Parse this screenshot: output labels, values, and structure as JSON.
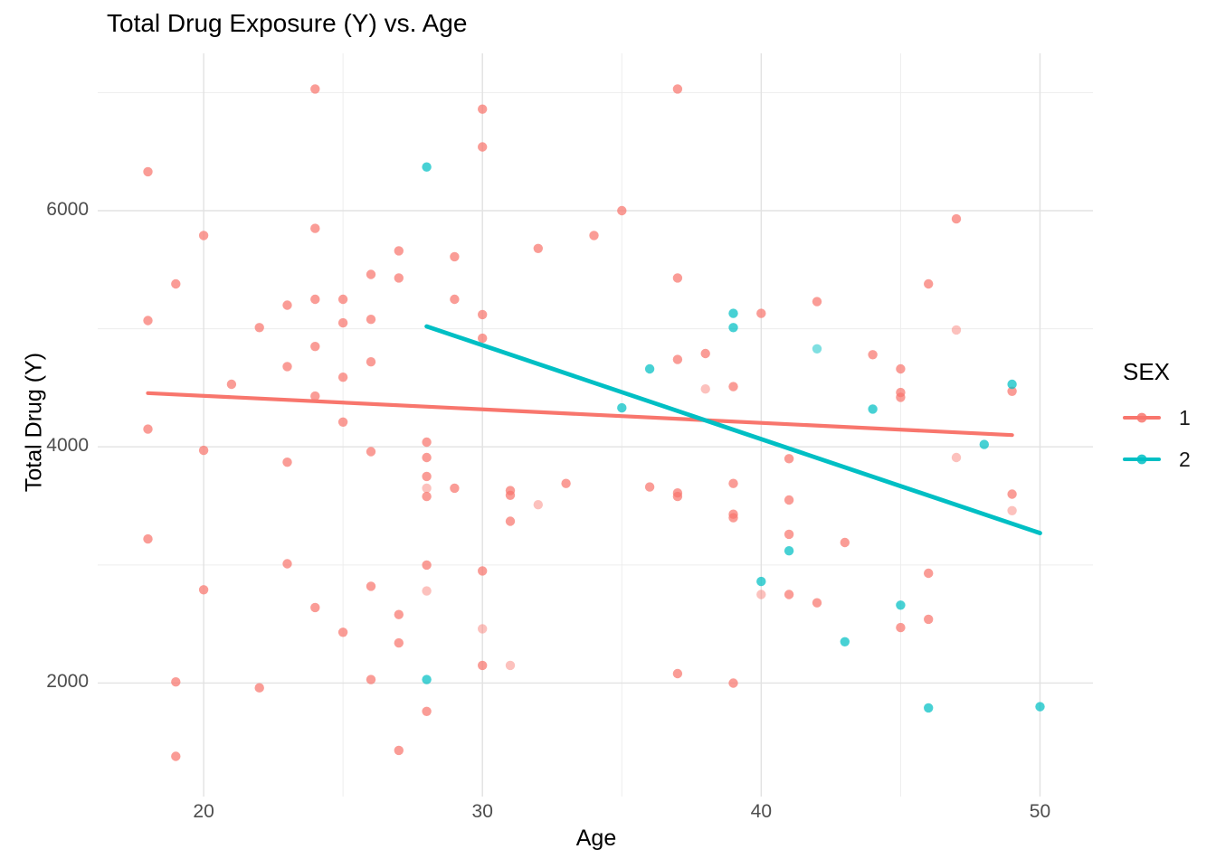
{
  "chart_data": {
    "type": "scatter",
    "title": "Total Drug Exposure (Y) vs. Age",
    "xlabel": "Age",
    "ylabel": "Total Drug (Y)",
    "xlim": [
      16.2,
      51.9
    ],
    "ylim": [
      1039,
      7332
    ],
    "grid": true,
    "x_major_ticks": [
      20,
      30,
      40,
      50
    ],
    "x_minor_ticks": [
      25,
      35,
      45
    ],
    "y_major_ticks": [
      2000,
      4000,
      6000
    ],
    "y_minor_ticks": [
      3000,
      5000,
      7000
    ],
    "legend": {
      "title": "SEX",
      "position": "right",
      "entries": [
        {
          "label": "1",
          "color": "#F8766D"
        },
        {
          "label": "2",
          "color": "#00BFC4"
        }
      ]
    },
    "series": [
      {
        "name": "1",
        "color": "#F8766D",
        "points": [
          [
            24,
            7030
          ],
          [
            37,
            7030
          ],
          [
            30,
            6860
          ],
          [
            30,
            6540
          ],
          [
            18,
            6330
          ],
          [
            35,
            6000
          ],
          [
            47,
            5930
          ],
          [
            24,
            5850
          ],
          [
            34,
            5790
          ],
          [
            20,
            5790
          ],
          [
            32,
            5680
          ],
          [
            27,
            5660
          ],
          [
            29,
            5610
          ],
          [
            26,
            5460
          ],
          [
            27,
            5430
          ],
          [
            37,
            5430
          ],
          [
            19,
            5380
          ],
          [
            46,
            5380
          ],
          [
            24,
            5250
          ],
          [
            25,
            5250
          ],
          [
            29,
            5250
          ],
          [
            42,
            5230
          ],
          [
            23,
            5200
          ],
          [
            40,
            5130
          ],
          [
            30,
            5120
          ],
          [
            26,
            5080
          ],
          [
            18,
            5070
          ],
          [
            25,
            5050
          ],
          [
            22,
            5010
          ],
          [
            47,
            4990,
            0.45
          ],
          [
            30,
            4920
          ],
          [
            24,
            4850
          ],
          [
            38,
            4790
          ],
          [
            44,
            4780
          ],
          [
            37,
            4740
          ],
          [
            26,
            4720
          ],
          [
            23,
            4680
          ],
          [
            45,
            4660
          ],
          [
            25,
            4590
          ],
          [
            21,
            4530
          ],
          [
            39,
            4510
          ],
          [
            38,
            4490,
            0.45
          ],
          [
            49,
            4470
          ],
          [
            45,
            4460
          ],
          [
            24,
            4430
          ],
          [
            45,
            4420
          ],
          [
            25,
            4210
          ],
          [
            18,
            4150
          ],
          [
            28,
            4040
          ],
          [
            20,
            3970
          ],
          [
            26,
            3960
          ],
          [
            28,
            3910
          ],
          [
            47,
            3910,
            0.45
          ],
          [
            41,
            3900
          ],
          [
            23,
            3870
          ],
          [
            28,
            3750
          ],
          [
            33,
            3690
          ],
          [
            39,
            3690
          ],
          [
            36,
            3660
          ],
          [
            28,
            3650,
            0.45
          ],
          [
            29,
            3650
          ],
          [
            31,
            3630
          ],
          [
            37,
            3610
          ],
          [
            49,
            3600
          ],
          [
            31,
            3590
          ],
          [
            28,
            3580
          ],
          [
            37,
            3580
          ],
          [
            41,
            3550
          ],
          [
            32,
            3510,
            0.45
          ],
          [
            49,
            3460,
            0.45
          ],
          [
            39,
            3430
          ],
          [
            39,
            3400
          ],
          [
            31,
            3370
          ],
          [
            41,
            3260
          ],
          [
            18,
            3220
          ],
          [
            43,
            3190
          ],
          [
            23,
            3010
          ],
          [
            28,
            3000
          ],
          [
            30,
            2950
          ],
          [
            46,
            2930
          ],
          [
            26,
            2820
          ],
          [
            20,
            2790
          ],
          [
            28,
            2780,
            0.45
          ],
          [
            40,
            2750,
            0.45
          ],
          [
            41,
            2750
          ],
          [
            42,
            2680
          ],
          [
            24,
            2640
          ],
          [
            27,
            2580
          ],
          [
            46,
            2540
          ],
          [
            45,
            2470
          ],
          [
            30,
            2460,
            0.45
          ],
          [
            25,
            2430
          ],
          [
            27,
            2340
          ],
          [
            30,
            2150
          ],
          [
            31,
            2150,
            0.45
          ],
          [
            37,
            2080
          ],
          [
            26,
            2030
          ],
          [
            19,
            2010
          ],
          [
            39,
            2000
          ],
          [
            22,
            1960
          ],
          [
            28,
            1760
          ],
          [
            27,
            1430
          ],
          [
            19,
            1380
          ]
        ]
      },
      {
        "name": "2",
        "color": "#00BFC4",
        "points": [
          [
            28,
            6370
          ],
          [
            39,
            5130
          ],
          [
            39,
            5010
          ],
          [
            42,
            4830,
            0.5
          ],
          [
            36,
            4660
          ],
          [
            49,
            4530
          ],
          [
            35,
            4330
          ],
          [
            44,
            4320
          ],
          [
            48,
            4020
          ],
          [
            41,
            3120
          ],
          [
            40,
            2860
          ],
          [
            45,
            2660
          ],
          [
            43,
            2350
          ],
          [
            28,
            2030
          ],
          [
            50,
            1800
          ],
          [
            46,
            1790
          ]
        ]
      }
    ],
    "trend_lines": [
      {
        "series": "1",
        "color": "#F8766D",
        "x1": 18.0,
        "y1": 4455,
        "x2": 49.0,
        "y2": 4100
      },
      {
        "series": "2",
        "color": "#00BFC4",
        "x1": 28.0,
        "y1": 5020,
        "x2": 50.0,
        "y2": 3270
      }
    ]
  },
  "colors": {
    "background": "#FFFFFF",
    "grid_major": "#E2E2E2",
    "grid_minor": "#EDEDED",
    "tick_text": "#4D4D4D",
    "text": "#000000",
    "sex1": "#F8766D",
    "sex2": "#00BFC4"
  }
}
